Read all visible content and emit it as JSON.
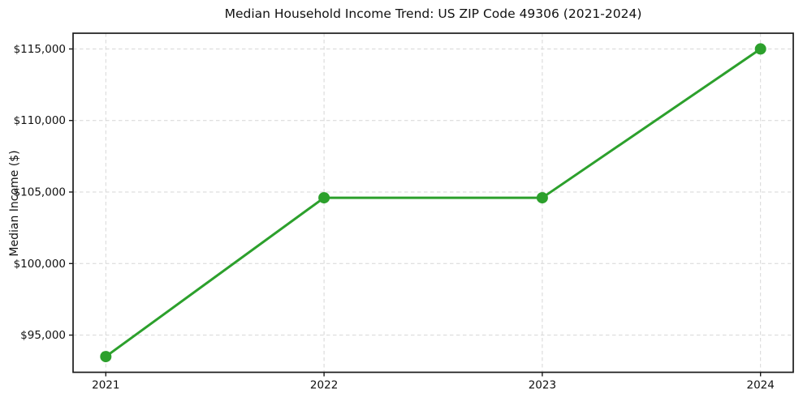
{
  "chart_data": {
    "type": "line",
    "title": "Median Household Income Trend: US ZIP Code 49306 (2021-2024)",
    "xlabel": "",
    "ylabel": "Median Income ($)",
    "categories": [
      "2021",
      "2022",
      "2023",
      "2024"
    ],
    "x": [
      2021,
      2022,
      2023,
      2024
    ],
    "series": [
      {
        "name": "Median Household Income",
        "values": [
          93500,
          104600,
          104600,
          115000
        ]
      }
    ],
    "yticks": [
      95000,
      100000,
      105000,
      110000,
      115000
    ],
    "ytick_labels": [
      "$95,000",
      "$100,000",
      "$105,000",
      "$110,000",
      "$115,000"
    ],
    "xlim": [
      2020.85,
      2024.15
    ],
    "ylim": [
      92400,
      116100
    ],
    "grid": "dashed",
    "legend": "none",
    "line_color": "#2ca02c",
    "marker": "circle",
    "grid_color": "#d6d6d6",
    "spine_color": "#1a1a1a",
    "background_color": "#ffffff"
  }
}
